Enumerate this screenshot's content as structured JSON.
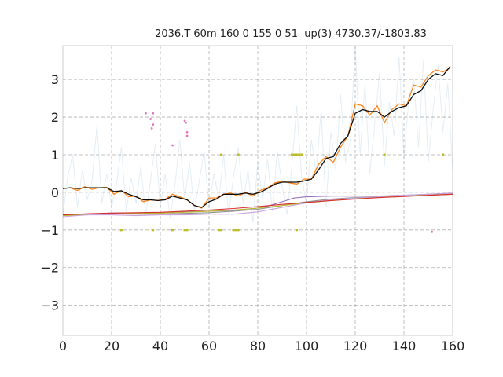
{
  "chart_data": {
    "type": "line",
    "title": "2036.T 60m 160 0 155 0 51  up(3) 4730.37/-1803.83",
    "xlim": [
      0,
      160
    ],
    "ylim": [
      -3.8,
      3.9
    ],
    "xticks": [
      0,
      20,
      40,
      60,
      80,
      100,
      120,
      140,
      160
    ],
    "yticks": [
      -3,
      -2,
      -1,
      0,
      1,
      2,
      3
    ],
    "xtick_labels": [
      "0",
      "20",
      "40",
      "60",
      "80",
      "100",
      "120",
      "140",
      "160"
    ],
    "ytick_labels": [
      "−3",
      "−2",
      "−1",
      "0",
      "1",
      "2",
      "3"
    ],
    "grid": true,
    "series": [
      {
        "color": "#1f77b4",
        "style": "faint-noise",
        "x": [
          0,
          2,
          4,
          6,
          8,
          10,
          12,
          14,
          16,
          18,
          20,
          22,
          24,
          26,
          28,
          30,
          32,
          34,
          36,
          38,
          40,
          42,
          44,
          46,
          48,
          50,
          52,
          54,
          56,
          58,
          60,
          62,
          64,
          66,
          68,
          70,
          72,
          74,
          76,
          78,
          80,
          82,
          84,
          86,
          88,
          90,
          92,
          94,
          96,
          98,
          100,
          102,
          104,
          106,
          108,
          110,
          112,
          114,
          116,
          118,
          120,
          122,
          124,
          126,
          128,
          130,
          132,
          134,
          136,
          138,
          140,
          142,
          144,
          146,
          148,
          150,
          152,
          154,
          156,
          158,
          160
        ],
        "y": [
          -0.6,
          0.4,
          1.0,
          -0.4,
          0.6,
          -0.2,
          0.3,
          1.8,
          -0.3,
          0.5,
          -0.4,
          0.2,
          1.2,
          -0.5,
          0.4,
          -0.3,
          0.7,
          -0.6,
          0.3,
          1.3,
          -0.4,
          0.5,
          -0.7,
          0.2,
          1.4,
          -0.2,
          0.8,
          -0.5,
          0.3,
          1.1,
          -0.4,
          0.5,
          -0.2,
          1.0,
          -0.6,
          0.4,
          1.2,
          -0.3,
          0.6,
          -0.8,
          0.8,
          -0.2,
          0.9,
          -0.5,
          1.1,
          0.2,
          -0.6,
          0.7,
          2.3,
          0.4,
          -0.3,
          1.4,
          0.5,
          2.2,
          -0.4,
          1.6,
          0.6,
          2.6,
          0.8,
          1.4,
          3.9,
          1.0,
          2.9,
          0.5,
          1.8,
          3.2,
          0.7,
          2.4,
          1.5,
          3.6,
          0.9,
          2.5,
          3.0,
          1.2,
          3.5,
          0.8,
          2.2,
          3.4,
          1.6,
          2.9,
          0.6
        ]
      },
      {
        "color": "#ff7f0e",
        "style": "line",
        "x": [
          0,
          3,
          6,
          9,
          12,
          15,
          18,
          21,
          24,
          27,
          30,
          33,
          36,
          39,
          42,
          45,
          48,
          51,
          54,
          57,
          60,
          63,
          66,
          69,
          72,
          75,
          78,
          81,
          84,
          87,
          90,
          93,
          96,
          99,
          102,
          105,
          108,
          111,
          114,
          117,
          120,
          123,
          126,
          129,
          132,
          135,
          138,
          141,
          144,
          147,
          150,
          153,
          156,
          159
        ],
        "y": [
          0.1,
          0.12,
          0.05,
          0.15,
          0.08,
          0.12,
          0.13,
          -0.05,
          0.05,
          -0.12,
          -0.1,
          -0.25,
          -0.2,
          -0.22,
          -0.18,
          -0.05,
          -0.12,
          -0.2,
          -0.35,
          -0.42,
          -0.15,
          -0.15,
          -0.05,
          -0.02,
          -0.1,
          0.0,
          -0.1,
          0.05,
          0.12,
          0.25,
          0.3,
          0.25,
          0.22,
          0.35,
          0.35,
          0.75,
          0.95,
          0.8,
          1.2,
          1.5,
          2.35,
          2.3,
          2.05,
          2.3,
          1.85,
          2.2,
          2.35,
          2.3,
          2.85,
          2.8,
          3.1,
          3.25,
          3.2,
          3.3
        ]
      },
      {
        "color": "#000000",
        "style": "line",
        "x": [
          0,
          3,
          6,
          9,
          12,
          15,
          18,
          21,
          24,
          27,
          30,
          33,
          36,
          39,
          42,
          45,
          48,
          51,
          54,
          57,
          60,
          63,
          66,
          69,
          72,
          75,
          78,
          81,
          84,
          87,
          90,
          93,
          96,
          99,
          102,
          105,
          108,
          111,
          114,
          117,
          120,
          123,
          126,
          129,
          132,
          135,
          138,
          141,
          144,
          147,
          150,
          153,
          156,
          159
        ],
        "y": [
          0.1,
          0.12,
          0.1,
          0.12,
          0.12,
          0.12,
          0.12,
          0.02,
          0.04,
          -0.05,
          -0.12,
          -0.2,
          -0.2,
          -0.22,
          -0.2,
          -0.1,
          -0.15,
          -0.2,
          -0.35,
          -0.4,
          -0.25,
          -0.18,
          -0.05,
          -0.05,
          -0.05,
          -0.02,
          -0.05,
          0.0,
          0.1,
          0.22,
          0.27,
          0.27,
          0.27,
          0.3,
          0.35,
          0.6,
          0.9,
          0.95,
          1.3,
          1.5,
          2.1,
          2.2,
          2.15,
          2.15,
          2.0,
          2.15,
          2.25,
          2.3,
          2.6,
          2.7,
          3.0,
          3.15,
          3.1,
          3.35
        ]
      },
      {
        "color": "#9467bd",
        "style": "line",
        "x": [
          0,
          10,
          20,
          30,
          40,
          50,
          60,
          70,
          80,
          85,
          90,
          95,
          100,
          110,
          120,
          130,
          140,
          150,
          160
        ],
        "y": [
          -0.62,
          -0.58,
          -0.55,
          -0.55,
          -0.55,
          -0.52,
          -0.5,
          -0.48,
          -0.42,
          -0.35,
          -0.25,
          -0.15,
          -0.12,
          -0.1,
          -0.1,
          -0.1,
          -0.08,
          -0.05,
          -0.02
        ]
      },
      {
        "color": "#8c8c8c",
        "style": "line",
        "x": [
          0,
          10,
          20,
          30,
          40,
          50,
          60,
          70,
          80,
          90,
          100,
          110,
          120,
          130,
          140,
          150,
          160
        ],
        "y": [
          -0.6,
          -0.58,
          -0.57,
          -0.58,
          -0.58,
          -0.56,
          -0.54,
          -0.5,
          -0.45,
          -0.35,
          -0.25,
          -0.18,
          -0.14,
          -0.12,
          -0.1,
          -0.08,
          -0.05
        ]
      },
      {
        "color": "#bcbd22",
        "style": "line",
        "x": [
          0,
          10,
          20,
          30,
          40,
          50,
          60,
          70,
          80,
          90,
          100,
          110,
          120,
          130,
          140,
          150,
          160
        ],
        "y": [
          -0.62,
          -0.6,
          -0.58,
          -0.56,
          -0.55,
          -0.53,
          -0.5,
          -0.47,
          -0.42,
          -0.35,
          -0.28,
          -0.22,
          -0.17,
          -0.13,
          -0.1,
          -0.07,
          -0.05
        ]
      },
      {
        "color": "#c9a0dc",
        "style": "line",
        "x": [
          0,
          10,
          20,
          30,
          40,
          50,
          60,
          70,
          80,
          90,
          100,
          110,
          120,
          130,
          140,
          150,
          160
        ],
        "y": [
          -0.65,
          -0.6,
          -0.6,
          -0.62,
          -0.6,
          -0.6,
          -0.58,
          -0.58,
          -0.52,
          -0.4,
          -0.28,
          -0.2,
          -0.15,
          -0.12,
          -0.08,
          -0.05,
          -0.02
        ]
      },
      {
        "color": "#d62728",
        "style": "line",
        "x": [
          0,
          10,
          20,
          30,
          40,
          50,
          60,
          70,
          80,
          90,
          100,
          110,
          120,
          130,
          140,
          150,
          160
        ],
        "y": [
          -0.6,
          -0.57,
          -0.55,
          -0.54,
          -0.53,
          -0.5,
          -0.47,
          -0.43,
          -0.38,
          -0.32,
          -0.27,
          -0.22,
          -0.18,
          -0.14,
          -0.11,
          -0.08,
          -0.05
        ]
      },
      {
        "color": "#e377c2",
        "style": "markers",
        "x": [
          34,
          36,
          37,
          36.5,
          37,
          45,
          50,
          50.5,
          51,
          51,
          151.5
        ],
        "y": [
          2.1,
          1.95,
          2.1,
          1.7,
          1.8,
          1.25,
          1.9,
          1.85,
          1.6,
          1.5,
          -1.05
        ]
      },
      {
        "color": "#bcbd22",
        "style": "markers",
        "x": [
          65,
          72,
          94,
          95,
          96,
          97,
          98,
          132,
          156,
          24,
          37,
          45,
          50,
          51,
          64,
          65,
          70,
          71,
          72,
          96
        ],
        "y": [
          1,
          1,
          1,
          1,
          1,
          1,
          1,
          1,
          1,
          -1,
          -1,
          -1,
          -1,
          -1,
          -1,
          -1,
          -1,
          -1,
          -1,
          -1
        ]
      }
    ]
  }
}
